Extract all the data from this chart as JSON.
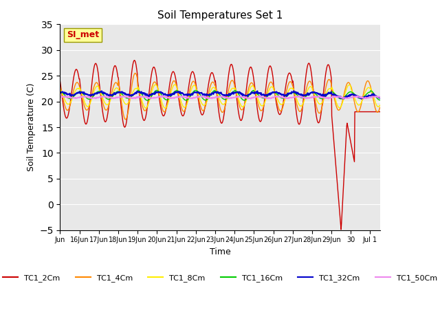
{
  "title": "Soil Temperatures Set 1",
  "xlabel": "Time",
  "ylabel": "Soil Temperature (C)",
  "ylim": [
    -5,
    35
  ],
  "yticks": [
    -5,
    0,
    5,
    10,
    15,
    20,
    25,
    30,
    35
  ],
  "annotation_text": "SI_met",
  "annotation_color": "#cc0000",
  "annotation_bg": "#ffff99",
  "annotation_border": "#999900",
  "bg_color": "#e8e8e8",
  "series_colors": {
    "TC1_2Cm": "#cc0000",
    "TC1_4Cm": "#ff8800",
    "TC1_8Cm": "#ffee00",
    "TC1_16Cm": "#00cc00",
    "TC1_32Cm": "#0000cc",
    "TC1_50Cm": "#ee88ee"
  },
  "xtick_labels": [
    "Jun",
    "16Jun",
    "17Jun",
    "18Jun",
    "19Jun",
    "20Jun",
    "21Jun",
    "22Jun",
    "23Jun",
    "24Jun",
    "25Jun",
    "26Jun",
    "27Jun",
    "28Jun",
    "29Jun",
    "30",
    "Jul 1"
  ],
  "num_days": 16.5,
  "n_points": 792
}
